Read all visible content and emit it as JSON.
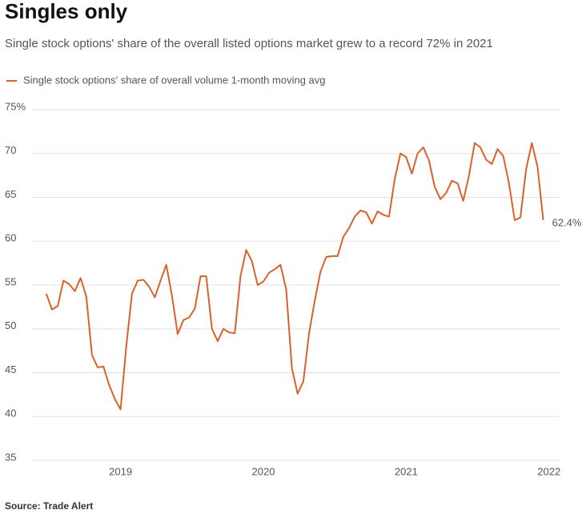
{
  "chart_data": {
    "type": "line",
    "title": "Singles only",
    "subtitle": "Single stock options' share of the overall listed options market grew to a record 72% in 2021",
    "source": "Source: Trade Alert",
    "x": [
      2018.48,
      2018.52,
      2018.56,
      2018.6,
      2018.64,
      2018.68,
      2018.72,
      2018.76,
      2018.8,
      2018.84,
      2018.88,
      2018.92,
      2018.96,
      2019.0,
      2019.04,
      2019.08,
      2019.12,
      2019.16,
      2019.2,
      2019.24,
      2019.28,
      2019.32,
      2019.36,
      2019.4,
      2019.44,
      2019.48,
      2019.52,
      2019.56,
      2019.6,
      2019.64,
      2019.68,
      2019.72,
      2019.76,
      2019.8,
      2019.84,
      2019.88,
      2019.92,
      2019.96,
      2020.0,
      2020.04,
      2020.08,
      2020.12,
      2020.16,
      2020.2,
      2020.24,
      2020.28,
      2020.32,
      2020.36,
      2020.4,
      2020.44,
      2020.48,
      2020.52,
      2020.56,
      2020.6,
      2020.64,
      2020.68,
      2020.72,
      2020.76,
      2020.8,
      2020.84,
      2020.88,
      2020.92,
      2020.96,
      2021.0,
      2021.04,
      2021.08,
      2021.12,
      2021.16,
      2021.2,
      2021.24,
      2021.28,
      2021.32,
      2021.36,
      2021.4,
      2021.44,
      2021.48,
      2021.52,
      2021.56,
      2021.6,
      2021.64,
      2021.68,
      2021.72,
      2021.76,
      2021.8,
      2021.84,
      2021.88,
      2021.92,
      2021.96
    ],
    "series": [
      {
        "name": "Single stock options' share of overall volume 1-month moving avg",
        "color": "#d9622b",
        "values": [
          54,
          52.2,
          52.6,
          55.5,
          55.1,
          54.3,
          55.8,
          53.7,
          47,
          45.6,
          45.7,
          43.6,
          42,
          40.8,
          48,
          54,
          55.5,
          55.6,
          54.8,
          53.6,
          55.5,
          57.3,
          53.8,
          49.4,
          51,
          51.3,
          52.3,
          56,
          56,
          50,
          48.6,
          50,
          49.6,
          49.5,
          56,
          59,
          57.7,
          55,
          55.4,
          56.4,
          56.8,
          57.3,
          54.5,
          45.5,
          42.6,
          44,
          49.5,
          53.2,
          56.5,
          58.2,
          58.3,
          58.3,
          60.5,
          61.5,
          62.8,
          63.5,
          63.3,
          62,
          63.4,
          63,
          62.8,
          67.1,
          70,
          69.6,
          67.7,
          70,
          70.7,
          69.2,
          66.2,
          64.8,
          65.5,
          66.9,
          66.6,
          64.6,
          67.5,
          71.2,
          70.7,
          69.3,
          68.8,
          70.5,
          69.7,
          66.6,
          62.4,
          62.7,
          68.2,
          71.2,
          68.5,
          62.4
        ],
        "value_labels": [
          null,
          null,
          null,
          null,
          null,
          null,
          null,
          null,
          null,
          null,
          null,
          null,
          null,
          null,
          null,
          null,
          null,
          null,
          null,
          null,
          null,
          null,
          null,
          null,
          null,
          null,
          null,
          null,
          null,
          null,
          null,
          null,
          null,
          null,
          null,
          null,
          null,
          null,
          null,
          null,
          null,
          null,
          null,
          null,
          null,
          null,
          null,
          null,
          null,
          null,
          null,
          null,
          null,
          null,
          null,
          null,
          null,
          null,
          null,
          null,
          null,
          null,
          null,
          null,
          null,
          null,
          null,
          null,
          null,
          null,
          null,
          null,
          null,
          null,
          null,
          null,
          null,
          null,
          null,
          null,
          null,
          null,
          null,
          null,
          null,
          null,
          null,
          "62.4%"
        ]
      }
    ],
    "xlim": [
      2018.38,
      2022.08
    ],
    "xticks": [
      2019,
      2020,
      2021,
      2022
    ],
    "ylim": [
      35,
      75
    ],
    "yticks": [
      35,
      40,
      45,
      50,
      55,
      60,
      65,
      {
        "value": 75,
        "label": "75%"
      },
      70
    ],
    "grid": true
  }
}
